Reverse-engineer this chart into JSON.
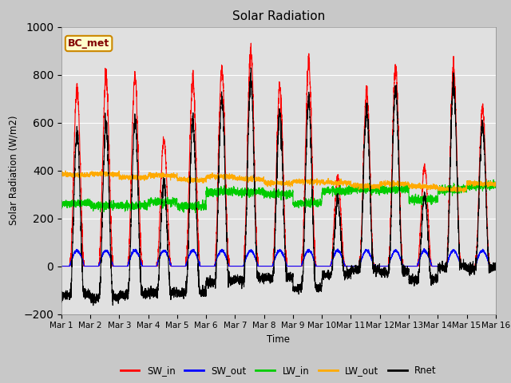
{
  "title": "Solar Radiation",
  "ylabel": "Solar Radiation (W/m2)",
  "xlabel": "Time",
  "ylim": [
    -200,
    1000
  ],
  "yticks": [
    -200,
    0,
    200,
    400,
    600,
    800,
    1000
  ],
  "n_days": 15,
  "fig_facecolor": "#c8c8c8",
  "axes_facecolor": "#e0e0e0",
  "legend_entries": [
    "SW_in",
    "SW_out",
    "LW_in",
    "LW_out",
    "Rnet"
  ],
  "legend_colors": [
    "#ff0000",
    "#0000ff",
    "#00cc00",
    "#ffaa00",
    "#000000"
  ],
  "annotation_text": "BC_met",
  "annotation_color": "#800000",
  "annotation_bg": "#ffffcc",
  "annotation_border": "#cc8800",
  "xtick_labels": [
    "Mar 1",
    "Mar 2",
    "Mar 3",
    "Mar 4",
    "Mar 5",
    "Mar 6",
    "Mar 7",
    "Mar 8",
    "Mar 9",
    "Mar 10",
    "Mar 11",
    "Mar 12",
    "Mar 13",
    "Mar 14",
    "Mar 15",
    "Mar 16"
  ],
  "SW_in_peaks": [
    740,
    790,
    790,
    530,
    780,
    825,
    900,
    745,
    845,
    370,
    730,
    825,
    415,
    825,
    660
  ],
  "grid_color": "#ffffff",
  "linewidth": 0.8
}
